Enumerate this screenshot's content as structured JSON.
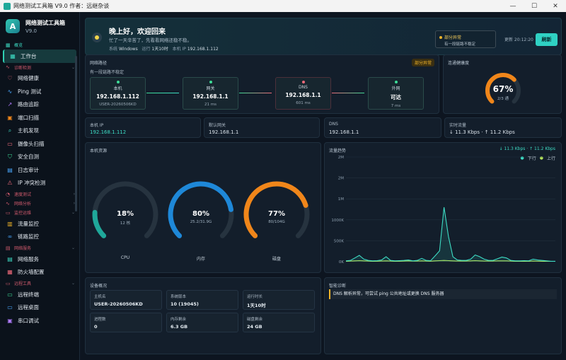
{
  "window": {
    "title": "网络测试工具箱 V9.0  作者：远继杂谈",
    "min": "—",
    "max": "☐",
    "close": "✕"
  },
  "brand": {
    "title": "网络测试工具箱",
    "version": "V9.0",
    "logo": "A"
  },
  "sidebar": {
    "group_overview": "概览",
    "item_dashboard": "工作台",
    "group_diag": "诊断检测",
    "diag_items": [
      "网络健康",
      "Ping 测试",
      "路由追踪",
      "端口扫描",
      "主机发现",
      "摄像头扫描",
      "安全自测",
      "日志审计",
      "IP 冲突检测"
    ],
    "group_speed": "速度测试",
    "group_analysis": "网络分析",
    "group_monitor": "监控运维",
    "monitor_items": [
      "流量监控",
      "链路监控"
    ],
    "group_services": "网络服务",
    "service_items": [
      "网络服务",
      "防火墙配置"
    ],
    "group_remote": "远程工具",
    "remote_items": [
      "远程终端",
      "远程桌面",
      "串口调试"
    ]
  },
  "hero": {
    "title": "晚上好，欢迎回来",
    "subtitle": "忙了一天辛苦了，先看看网络还稳不稳。",
    "sys_label": "系统",
    "sys_value": "Windows",
    "uptime_label": "运行",
    "uptime_value": "1天10时",
    "ip_label": "本机 IP",
    "ip_value": "192.168.1.112",
    "warn_title": "部分异常",
    "warn_text": "有一段链路不稳定",
    "refresh_label": "更新 20:12:20",
    "refresh_button": "刷新"
  },
  "path": {
    "title": "网络路径",
    "badge": "部分异常",
    "subtitle": "有一段链路不稳定",
    "nodes": [
      {
        "label": "本机",
        "ip": "192.168.1.112",
        "extra": "USER-20260506KD",
        "color": "#3ddc97"
      },
      {
        "label": "网关",
        "ip": "192.168.1.1",
        "extra": "21 ms",
        "color": "#3ddc97"
      },
      {
        "label": "DNS",
        "ip": "192.168.1.1",
        "extra": "601 ms",
        "color": "#f06a7a"
      },
      {
        "label": "外网",
        "ip": "可达",
        "extra": "7 ms",
        "color": "#3ddc97"
      }
    ]
  },
  "rate": {
    "title": "连通健康度",
    "value": "67%",
    "sub": "2/3 通",
    "fraction": 0.67,
    "color": "#f0861a"
  },
  "info": [
    {
      "label": "本机 IP",
      "value": "192.168.1.112",
      "accent": "#3ddcc4"
    },
    {
      "label": "默认网关",
      "value": "192.168.1.1",
      "accent": "#d9e2ea"
    },
    {
      "label": "DNS",
      "value": "192.168.1.1",
      "accent": "#d9e2ea"
    },
    {
      "label": "实时流量",
      "value": "↓ 11.3 Kbps · ↑ 11.2 Kbps",
      "accent": "#d9e2ea"
    }
  ],
  "resources": {
    "title": "本机资源",
    "gauges": [
      {
        "name": "CPU",
        "value": "18%",
        "sub": "12 核",
        "fraction": 0.18,
        "color": "#1fa89a"
      },
      {
        "name": "内存",
        "value": "80%",
        "sub": "25.2/31.9G",
        "fraction": 0.8,
        "color": "#1e88d8"
      },
      {
        "name": "磁盘",
        "value": "77%",
        "sub": "80/104G",
        "fraction": 0.77,
        "color": "#f0861a"
      }
    ]
  },
  "flow": {
    "title": "流量趋势",
    "summary": "↓ 11.3 Kbps · ↑ 11.2 Kbps",
    "legend_down": "下行",
    "legend_up": "上行"
  },
  "chart_data": {
    "type": "area",
    "title": "流量趋势",
    "y_ticks": [
      "0K",
      "500K",
      "1000K",
      "1M",
      "2M",
      "2M"
    ],
    "ylim": [
      0,
      2500
    ],
    "series": [
      {
        "name": "下行",
        "color": "#3ddcc4",
        "values": [
          20,
          30,
          90,
          150,
          60,
          30,
          20,
          25,
          40,
          120,
          30,
          20,
          25,
          30,
          40,
          20,
          30,
          80,
          30,
          25,
          140,
          260,
          1300,
          600,
          120,
          40,
          30,
          30,
          60,
          160,
          120,
          60,
          30,
          30,
          70,
          110,
          90,
          30,
          20,
          20,
          25,
          20,
          60,
          40,
          30,
          20,
          10,
          10
        ]
      },
      {
        "name": "上行",
        "color": "#b5e35b",
        "values": [
          10,
          15,
          20,
          25,
          20,
          15,
          10,
          12,
          15,
          20,
          15,
          10,
          12,
          15,
          20,
          15,
          15,
          20,
          15,
          12,
          20,
          25,
          30,
          25,
          20,
          15,
          15,
          15,
          20,
          25,
          20,
          15,
          15,
          15,
          20,
          20,
          20,
          15,
          10,
          10,
          12,
          10,
          15,
          12,
          10,
          10,
          8,
          8
        ]
      }
    ]
  },
  "device": {
    "title": "设备概况",
    "cells": [
      {
        "label": "主机名",
        "value": "USER-20260506KD"
      },
      {
        "label": "系统版本",
        "value": "10 (19045)"
      },
      {
        "label": "运行时长",
        "value": "1天10时"
      },
      {
        "label": "进程数",
        "value": "0"
      },
      {
        "label": "内存剩余",
        "value": "6.3 GB"
      },
      {
        "label": "磁盘剩余",
        "value": "24 GB"
      }
    ]
  },
  "diag": {
    "title": "智能诊断",
    "alert": "DNS 解析异常，可尝试 ping 公共地址或更换 DNS 服务器"
  }
}
